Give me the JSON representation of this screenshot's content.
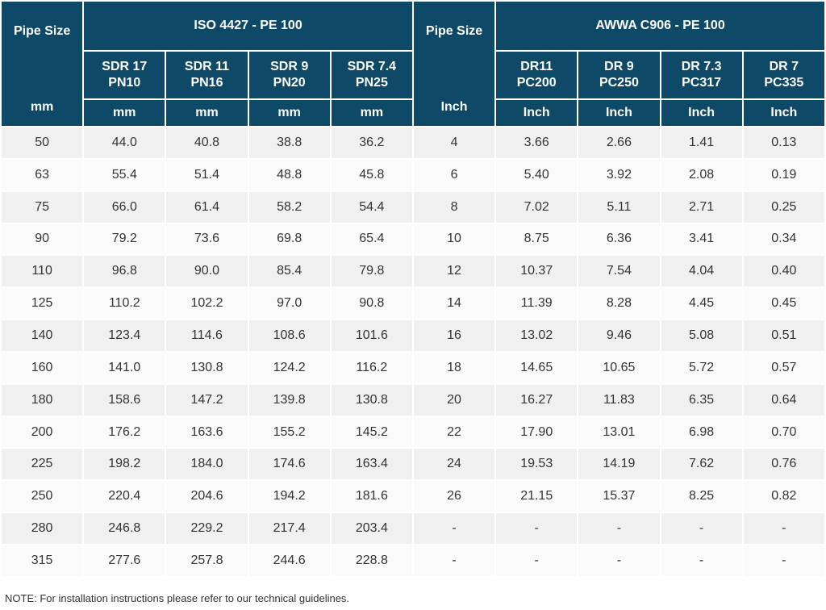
{
  "table": {
    "iso": {
      "size_label": "Pipe Size",
      "size_unit": "mm",
      "group_title": "ISO 4427 - PE 100",
      "columns": [
        {
          "line1": "SDR 17",
          "line2": "PN10",
          "unit": "mm"
        },
        {
          "line1": "SDR 11",
          "line2": "PN16",
          "unit": "mm"
        },
        {
          "line1": "SDR 9",
          "line2": "PN20",
          "unit": "mm"
        },
        {
          "line1": "SDR 7.4",
          "line2": "PN25",
          "unit": "mm"
        }
      ]
    },
    "awwa": {
      "size_label": "Pipe Size",
      "size_unit": "Inch",
      "group_title": "AWWA C906 - PE 100",
      "columns": [
        {
          "line1": "DR11",
          "line2": "PC200",
          "unit": "Inch"
        },
        {
          "line1": "DR 9",
          "line2": "PC250",
          "unit": "Inch"
        },
        {
          "line1": "DR 7.3",
          "line2": "PC317",
          "unit": "Inch"
        },
        {
          "line1": "DR 7",
          "line2": "PC335",
          "unit": "Inch"
        }
      ]
    },
    "rows": [
      [
        "50",
        "44.0",
        "40.8",
        "38.8",
        "36.2",
        "4",
        "3.66",
        "2.66",
        "1.41",
        "0.13"
      ],
      [
        "63",
        "55.4",
        "51.4",
        "48.8",
        "45.8",
        "6",
        "5.40",
        "3.92",
        "2.08",
        "0.19"
      ],
      [
        "75",
        "66.0",
        "61.4",
        "58.2",
        "54.4",
        "8",
        "7.02",
        "5.11",
        "2.71",
        "0.25"
      ],
      [
        "90",
        "79.2",
        "73.6",
        "69.8",
        "65.4",
        "10",
        "8.75",
        "6.36",
        "3.41",
        "0.34"
      ],
      [
        "110",
        "96.8",
        "90.0",
        "85.4",
        "79.8",
        "12",
        "10.37",
        "7.54",
        "4.04",
        "0.40"
      ],
      [
        "125",
        "110.2",
        "102.2",
        "97.0",
        "90.8",
        "14",
        "11.39",
        "8.28",
        "4.45",
        "0.45"
      ],
      [
        "140",
        "123.4",
        "114.6",
        "108.6",
        "101.6",
        "16",
        "13.02",
        "9.46",
        "5.08",
        "0.51"
      ],
      [
        "160",
        "141.0",
        "130.8",
        "124.2",
        "116.2",
        "18",
        "14.65",
        "10.65",
        "5.72",
        "0.57"
      ],
      [
        "180",
        "158.6",
        "147.2",
        "139.8",
        "130.8",
        "20",
        "16.27",
        "11.83",
        "6.35",
        "0.64"
      ],
      [
        "200",
        "176.2",
        "163.6",
        "155.2",
        "145.2",
        "22",
        "17.90",
        "13.01",
        "6.98",
        "0.70"
      ],
      [
        "225",
        "198.2",
        "184.0",
        "174.6",
        "163.4",
        "24",
        "19.53",
        "14.19",
        "7.62",
        "0.76"
      ],
      [
        "250",
        "220.4",
        "204.6",
        "194.2",
        "181.6",
        "26",
        "21.15",
        "15.37",
        "8.25",
        "0.82"
      ],
      [
        "280",
        "246.8",
        "229.2",
        "217.4",
        "203.4",
        "-",
        "-",
        "-",
        "-",
        "-"
      ],
      [
        "315",
        "277.6",
        "257.8",
        "244.6",
        "228.8",
        "-",
        "-",
        "-",
        "-",
        "-"
      ]
    ]
  },
  "note": "NOTE: For installation instructions please refer to our technical guidelines.",
  "colors": {
    "header_bg": "#0e4a67",
    "header_text": "#ffffff",
    "row_odd": "#f0f0f0",
    "row_even": "#fafafa"
  }
}
